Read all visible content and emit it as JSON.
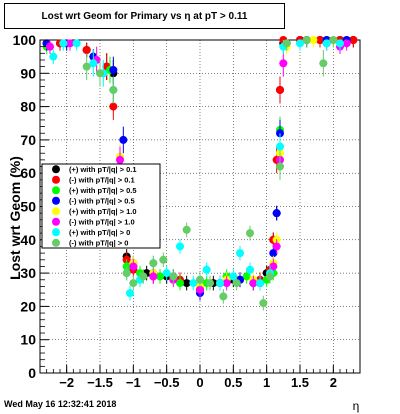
{
  "chart_data": {
    "type": "scatter",
    "title": "Lost wrt Geom for Primary vs   η at pT > 0.11",
    "xlabel": "η",
    "ylabel": "Lost wrt Geom (%)",
    "xlim": [
      -2.4,
      2.4
    ],
    "ylim": [
      0,
      100
    ],
    "x_ticks": [
      "−2",
      "−1.5",
      "−1",
      "−0.5",
      "0",
      "0.5",
      "1",
      "1.5",
      "2"
    ],
    "x_tick_values": [
      -2,
      -1.5,
      -1,
      -0.5,
      0,
      0.5,
      1,
      1.5,
      2
    ],
    "y_ticks": [
      "0",
      "10",
      "20",
      "30",
      "40",
      "50",
      "60",
      "70",
      "80",
      "90",
      "100"
    ],
    "y_tick_values": [
      0,
      10,
      20,
      30,
      40,
      50,
      60,
      70,
      80,
      90,
      100
    ],
    "grid": true,
    "legend_position": "left",
    "series": [
      {
        "name": "(+) with pT/|q| > 0.1",
        "color": "#000000",
        "points": [
          [
            -2.3,
            99
          ],
          [
            -2.1,
            99
          ],
          [
            -1.7,
            97
          ],
          [
            -1.4,
            92
          ],
          [
            -1.3,
            90
          ],
          [
            -1.2,
            62
          ],
          [
            -1.1,
            35
          ],
          [
            -1.0,
            32
          ],
          [
            -0.8,
            30
          ],
          [
            -0.5,
            29
          ],
          [
            -0.2,
            27
          ],
          [
            0.0,
            25
          ],
          [
            0.2,
            27
          ],
          [
            0.5,
            28
          ],
          [
            0.8,
            27
          ],
          [
            1.0,
            30
          ],
          [
            1.1,
            40
          ],
          [
            1.15,
            48
          ],
          [
            1.2,
            85
          ],
          [
            1.25,
            99
          ],
          [
            1.5,
            100
          ],
          [
            1.8,
            100
          ],
          [
            2.1,
            100
          ],
          [
            2.3,
            100
          ]
        ]
      },
      {
        "name": "(-) with pT/|q| > 0.1",
        "color": "#ff0000",
        "points": [
          [
            -2.3,
            99
          ],
          [
            -2.1,
            99
          ],
          [
            -1.7,
            97
          ],
          [
            -1.4,
            92
          ],
          [
            -1.3,
            80
          ],
          [
            -1.2,
            62
          ],
          [
            -1.1,
            34
          ],
          [
            -1.0,
            31
          ],
          [
            -0.7,
            29
          ],
          [
            -0.3,
            28
          ],
          [
            0.0,
            26
          ],
          [
            0.3,
            27
          ],
          [
            0.6,
            28
          ],
          [
            0.9,
            28
          ],
          [
            1.05,
            31
          ],
          [
            1.1,
            40
          ],
          [
            1.15,
            64
          ],
          [
            1.2,
            85
          ],
          [
            1.25,
            100
          ],
          [
            1.5,
            100
          ],
          [
            1.8,
            100
          ],
          [
            2.1,
            100
          ],
          [
            2.3,
            100
          ]
        ]
      },
      {
        "name": "(+) with pT/|q| > 0.5",
        "color": "#00ff00",
        "points": [
          [
            -2.3,
            98
          ],
          [
            -2.0,
            99
          ],
          [
            -1.6,
            95
          ],
          [
            -1.35,
            91
          ],
          [
            -1.2,
            55
          ],
          [
            -1.1,
            32
          ],
          [
            -0.9,
            30
          ],
          [
            -0.6,
            29
          ],
          [
            -0.3,
            27
          ],
          [
            0.1,
            27
          ],
          [
            0.4,
            29
          ],
          [
            0.7,
            29
          ],
          [
            1.0,
            28
          ],
          [
            1.1,
            30
          ],
          [
            1.2,
            73
          ],
          [
            1.3,
            99
          ],
          [
            1.6,
            100
          ],
          [
            1.9,
            100
          ],
          [
            2.2,
            100
          ]
        ]
      },
      {
        "name": "(-) with pT/|q| > 0.5",
        "color": "#0000ff",
        "points": [
          [
            -2.3,
            99
          ],
          [
            -2.0,
            99
          ],
          [
            -1.6,
            95
          ],
          [
            -1.3,
            91
          ],
          [
            -1.15,
            70
          ],
          [
            -1.1,
            48
          ],
          [
            -1.0,
            33
          ],
          [
            -0.7,
            30
          ],
          [
            -0.4,
            29
          ],
          [
            0.0,
            24
          ],
          [
            0.3,
            27
          ],
          [
            0.6,
            28
          ],
          [
            0.9,
            27
          ],
          [
            1.1,
            36
          ],
          [
            1.15,
            48
          ],
          [
            1.2,
            72
          ],
          [
            1.3,
            99
          ],
          [
            1.6,
            100
          ],
          [
            1.9,
            100
          ],
          [
            2.2,
            100
          ]
        ]
      },
      {
        "name": "(+) with pT/|q| > 1.0",
        "color": "#ffff00",
        "points": [
          [
            -2.25,
            98
          ],
          [
            -1.95,
            99
          ],
          [
            -1.55,
            94
          ],
          [
            -1.2,
            65
          ],
          [
            -1.1,
            47
          ],
          [
            -1.0,
            33
          ],
          [
            -0.7,
            30
          ],
          [
            -0.4,
            28
          ],
          [
            0.0,
            26
          ],
          [
            0.4,
            28
          ],
          [
            0.8,
            28
          ],
          [
            1.1,
            33
          ],
          [
            1.15,
            40
          ],
          [
            1.2,
            66
          ],
          [
            1.3,
            98
          ],
          [
            1.7,
            100
          ],
          [
            2.0,
            100
          ]
        ]
      },
      {
        "name": "(-) with pT/|q| > 1.0",
        "color": "#ff00ff",
        "points": [
          [
            -2.25,
            98
          ],
          [
            -1.95,
            99
          ],
          [
            -1.55,
            94
          ],
          [
            -1.2,
            64
          ],
          [
            -1.1,
            46
          ],
          [
            -1.0,
            32
          ],
          [
            -0.7,
            29
          ],
          [
            -0.4,
            28
          ],
          [
            0.0,
            25
          ],
          [
            0.4,
            27
          ],
          [
            0.8,
            27
          ],
          [
            1.1,
            32
          ],
          [
            1.15,
            38
          ],
          [
            1.2,
            64
          ],
          [
            1.25,
            93
          ],
          [
            1.9,
            99
          ],
          [
            2.1,
            98
          ],
          [
            2.2,
            99
          ]
        ]
      },
      {
        "name": "(+) with pT/|q| > 0",
        "color": "#00ffff",
        "points": [
          [
            -2.2,
            95
          ],
          [
            -2.05,
            99
          ],
          [
            -1.85,
            99
          ],
          [
            -1.6,
            93
          ],
          [
            -1.45,
            90
          ],
          [
            -1.3,
            85
          ],
          [
            -1.2,
            52
          ],
          [
            -1.1,
            30
          ],
          [
            -1.05,
            24
          ],
          [
            -0.9,
            28
          ],
          [
            -0.7,
            33
          ],
          [
            -0.5,
            30
          ],
          [
            -0.3,
            38
          ],
          [
            -0.1,
            27
          ],
          [
            0.1,
            31
          ],
          [
            0.3,
            27
          ],
          [
            0.5,
            29
          ],
          [
            0.6,
            36
          ],
          [
            0.75,
            31
          ],
          [
            0.9,
            27
          ],
          [
            1.05,
            30
          ],
          [
            1.2,
            68
          ],
          [
            1.25,
            98
          ],
          [
            1.5,
            99
          ],
          [
            1.9,
            99
          ],
          [
            2.1,
            99
          ]
        ]
      },
      {
        "name": "(-) with pT/|q| > 0",
        "color": "#66cc66",
        "points": [
          [
            -1.7,
            92
          ],
          [
            -1.5,
            90
          ],
          [
            -1.3,
            85
          ],
          [
            -1.2,
            42
          ],
          [
            -1.1,
            30
          ],
          [
            -1.0,
            27
          ],
          [
            -0.85,
            29
          ],
          [
            -0.7,
            33
          ],
          [
            -0.55,
            34
          ],
          [
            -0.4,
            29
          ],
          [
            -0.2,
            43
          ],
          [
            0.0,
            28
          ],
          [
            0.15,
            27
          ],
          [
            0.35,
            23
          ],
          [
            0.55,
            27
          ],
          [
            0.75,
            42
          ],
          [
            0.95,
            21
          ],
          [
            1.05,
            29
          ],
          [
            1.2,
            62
          ],
          [
            1.3,
            99
          ],
          [
            1.6,
            100
          ],
          [
            1.85,
            93
          ],
          [
            2.0,
            100
          ]
        ]
      }
    ]
  },
  "footer": {
    "timestamp": "Wed May 16 12:32:41 2018"
  }
}
